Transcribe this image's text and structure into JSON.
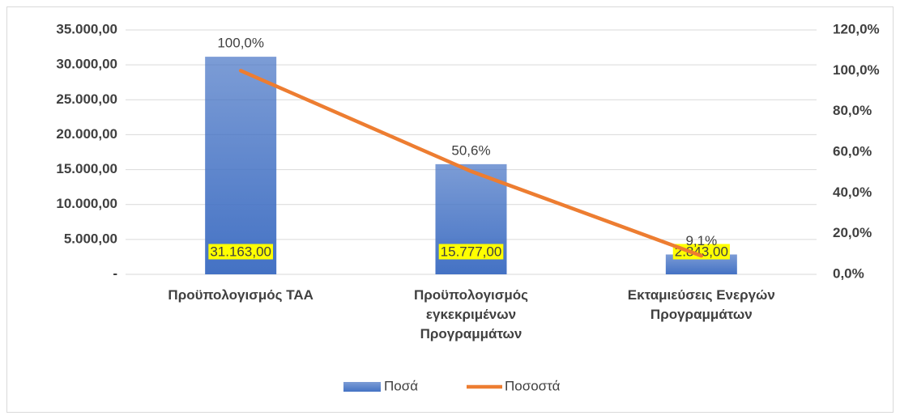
{
  "chart_data": {
    "type": "bar-line",
    "categories": [
      "Προϋπολογισμός ΤΑΑ",
      "Προϋπολογισμός εγκεκριμένων Προγραμμάτων",
      "Εκταμιεύσεις Ενεργών Προγραμμάτων"
    ],
    "series": [
      {
        "name": "Ποσά",
        "type": "bar",
        "color": "#4472c4",
        "values": [
          31163,
          15777,
          2843
        ],
        "value_labels": [
          "31.163,00",
          "15.777,00",
          "2.843,00"
        ]
      },
      {
        "name": "Ποσοστά",
        "type": "line",
        "axis": "y2",
        "color": "#ed7d31",
        "values": [
          100,
          50.6,
          9.1
        ],
        "value_labels": [
          "100,0%",
          "50,6%",
          "9,1%"
        ]
      }
    ],
    "ylim": [
      0,
      35000
    ],
    "yticks": [
      {
        "value": 0,
        "label": "-"
      },
      {
        "value": 5000,
        "label": "5.000,00"
      },
      {
        "value": 10000,
        "label": "10.000,00"
      },
      {
        "value": 15000,
        "label": "15.000,00"
      },
      {
        "value": 20000,
        "label": "20.000,00"
      },
      {
        "value": 25000,
        "label": "25.000,00"
      },
      {
        "value": 30000,
        "label": "30.000,00"
      },
      {
        "value": 35000,
        "label": "35.000,00"
      }
    ],
    "y2lim": [
      0,
      120
    ],
    "y2ticks": [
      {
        "value": 0,
        "label": "0,0%"
      },
      {
        "value": 20,
        "label": "20,0%"
      },
      {
        "value": 40,
        "label": "40,0%"
      },
      {
        "value": 60,
        "label": "60,0%"
      },
      {
        "value": 80,
        "label": "80,0%"
      },
      {
        "value": 100,
        "label": "100,0%"
      },
      {
        "value": 120,
        "label": "120,0%"
      }
    ],
    "grid": true,
    "legend": "bottom"
  }
}
